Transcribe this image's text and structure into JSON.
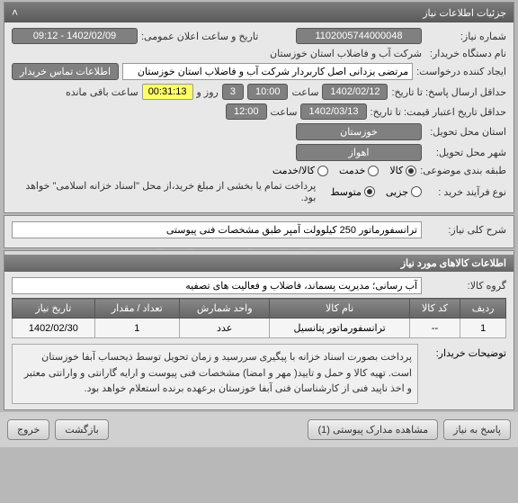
{
  "header": {
    "title": "جزئیات اطلاعات نیاز",
    "collapse": "˄"
  },
  "request": {
    "number_label": "شماره نیاز:",
    "number": "1102005744000048",
    "date_label": "تاریخ و ساعت اعلان عمومی:",
    "date": "1402/02/09 - 09:12",
    "buyer_org_label": "نام دستگاه خریدار:",
    "buyer_org": "شرکت آب و فاضلاب استان خوزستان",
    "creator_label": "ایجاد کننده درخواست:",
    "creator": "مرتضی یزدانی اصل کاربردار شرکت آب و فاضلاب استان خوزستان",
    "contact_btn": "اطلاعات تماس خریدار",
    "deadline_label": "حداقل ارسال پاسخ: تا تاریخ:",
    "deadline_date": "1402/02/12",
    "deadline_time": "10:00",
    "deadline_days": "3",
    "deadline_remaining": "00:31:13",
    "time_label": "ساعت",
    "day_label": "روز و",
    "remaining_label": "ساعت باقی مانده",
    "validity_label": "حداقل تاریخ اعتبار قیمت: تا تاریخ:",
    "validity_date": "1402/03/13",
    "validity_time": "12:00",
    "delivery_province_label": "استان محل تحویل:",
    "delivery_province": "خوزستان",
    "delivery_city_label": "شهر محل تحویل:",
    "delivery_city": "اهواز",
    "category_label": "طبقه بندی موضوعی:",
    "cat_goods": "کالا",
    "cat_service": "خدمت",
    "cat_goods_service": "کالا/خدمت",
    "process_label": "نوع فرآیند خرید :",
    "proc_partial": "جزیی",
    "proc_medium": "متوسط",
    "process_note": "پرداخت تمام یا بخشی از مبلغ خرید،از محل \"اسناد خزانه اسلامی\" خواهد بود."
  },
  "summary": {
    "label": "شرح کلی نیاز:",
    "text": "ترانسفورماتور 250 کیلوولت آمپر طبق مشخصات فنی پیوستی"
  },
  "items": {
    "section_title": "اطلاعات کالاهای مورد نیاز",
    "group_label": "گروه کالا:",
    "group": "آب رسانی؛ مدیریت پسماند، فاضلاب و فعالیت های تصفیه",
    "columns": {
      "row": "ردیف",
      "code": "کد کالا",
      "name": "نام کالا",
      "unit": "واحد شمارش",
      "qty": "تعداد / مقدار",
      "date": "تاریخ نیاز"
    },
    "rows": [
      {
        "row": "1",
        "code": "--",
        "name": "ترانسفورماتور پتانسیل",
        "unit": "عدد",
        "qty": "1",
        "date": "1402/02/30"
      }
    ]
  },
  "buyer_notes": {
    "label": "توضیحات خریدار:",
    "text": "پرداخت بصورت اسناد خزانه با پیگیری سررسید و زمان تحویل توسط ذیحساب آبفا خوزستان است. تهیه کالا و حمل و تایید( مهر و امضا) مشخصات فنی پیوست و ارایه گارانتی و وارانتی معتبر و اخذ ناپید فنی از کارشناسان فنی آبفا خوزستان برعهده برنده استعلام خواهد بود."
  },
  "buttons": {
    "respond": "پاسخ به نیاز",
    "attachments": "مشاهده مدارک پیوستی (1)",
    "back": "بازگشت",
    "exit": "خروج"
  },
  "colors": {
    "header_bg": "#6a6a6a",
    "value_bg": "#808080",
    "highlight": "#ffff66",
    "panel_bg": "#e8e8e8"
  }
}
